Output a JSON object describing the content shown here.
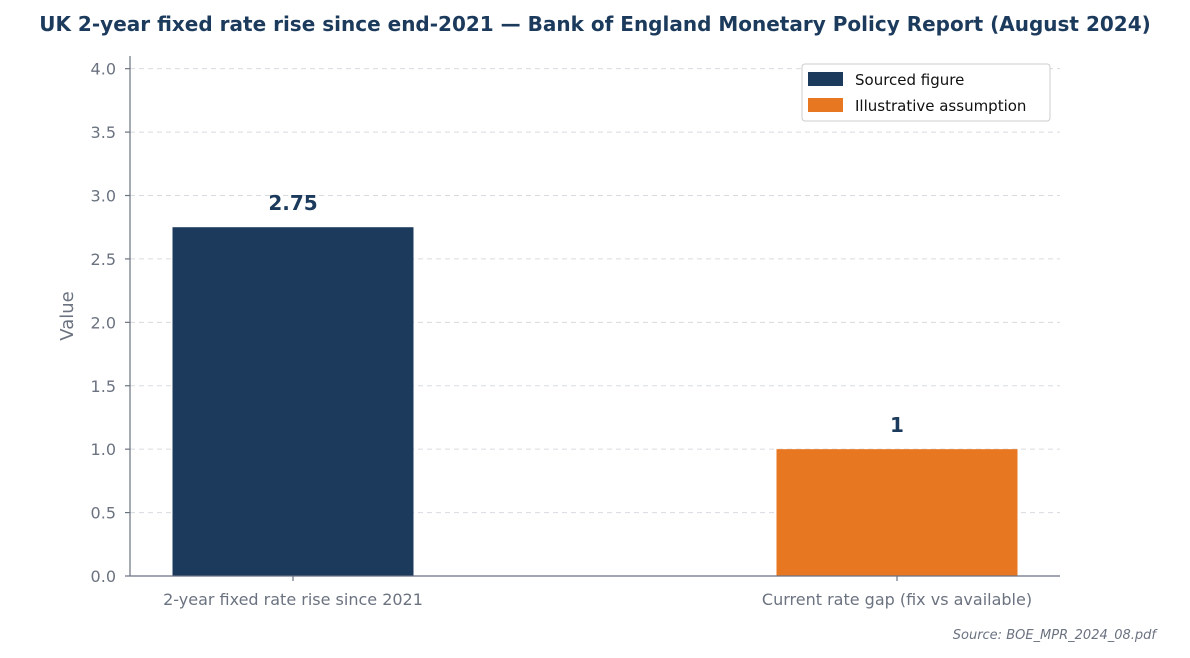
{
  "chart_data": {
    "type": "bar",
    "title": "UK 2-year fixed rate rise since end-2021 — Bank of England Monetary Policy Report (August 2024)",
    "ylabel": "Value",
    "xlabel": "",
    "ylim": [
      0,
      4.1
    ],
    "yticks": [
      "0.0",
      "0.5",
      "1.0",
      "1.5",
      "2.0",
      "2.5",
      "3.0",
      "3.5",
      "4.0"
    ],
    "grid": true,
    "categories": [
      "2-year fixed rate rise since 2021",
      "Current rate gap (fix vs available)"
    ],
    "values": [
      2.75,
      1
    ],
    "value_labels": [
      "2.75",
      "1"
    ],
    "bar_colors": [
      "#1b3a5c",
      "#e87722"
    ],
    "legend": {
      "placement": "top-right",
      "entries": [
        {
          "label": "Sourced figure",
          "color": "#1b3a5c"
        },
        {
          "label": "Illustrative assumption",
          "color": "#e87722"
        }
      ]
    },
    "source": "Source: BOE_MPR_2024_08.pdf"
  }
}
